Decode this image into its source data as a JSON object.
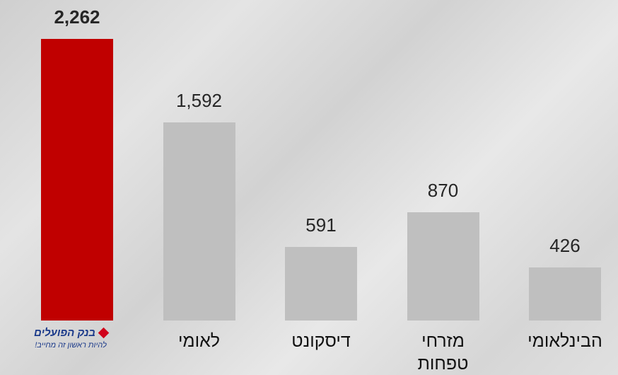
{
  "chart_data": {
    "type": "bar",
    "categories": [
      "בנק הפועלים",
      "לאומי",
      "דיסקונט",
      "מזרחי\nטפחות",
      "הבינלאומי"
    ],
    "logo_slogan": "להיות ראשון זה מחייב!",
    "values": [
      2262,
      1592,
      591,
      870,
      426
    ],
    "value_labels": [
      "2,262",
      "1,592",
      "591",
      "870",
      "426"
    ],
    "colors": [
      "#c00000",
      "#bfbfbf",
      "#bfbfbf",
      "#bfbfbf",
      "#bfbfbf"
    ],
    "highlight_index": 0
  }
}
